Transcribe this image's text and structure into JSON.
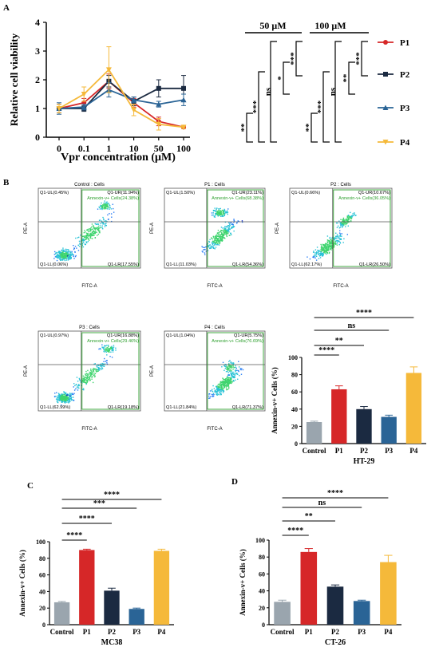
{
  "panel_labels": {
    "a": "A",
    "b": "B",
    "c": "C",
    "d": "D"
  },
  "colors": {
    "P1": "#d62728",
    "P2": "#1b2a41",
    "P3": "#2a6496",
    "P4": "#f5b93a",
    "control": "#9aa5ae",
    "flow_gate": "#2fa02f"
  },
  "chart_data": [
    {
      "type": "line",
      "panel": "A",
      "categories": [
        "0",
        "0.1",
        "1",
        "10",
        "50",
        "100"
      ],
      "xlabel": "Vpr concentration (μM)",
      "ylabel": "Relative cell viability",
      "ylim": [
        0,
        4
      ],
      "yticks": [
        "0",
        "1",
        "2",
        "3",
        "4"
      ],
      "series": [
        {
          "name": "P1",
          "values": [
            1.0,
            1.2,
            1.95,
            1.2,
            0.55,
            0.35
          ],
          "errors": [
            0.15,
            0.15,
            0.25,
            0.15,
            0.15,
            0.05
          ]
        },
        {
          "name": "P2",
          "values": [
            1.0,
            1.0,
            1.95,
            1.25,
            1.7,
            1.7
          ],
          "errors": [
            0.15,
            0.1,
            0.2,
            0.15,
            0.3,
            0.45
          ]
        },
        {
          "name": "P3",
          "values": [
            1.0,
            1.05,
            1.65,
            1.3,
            1.15,
            1.3
          ],
          "errors": [
            0.2,
            0.1,
            0.25,
            0.1,
            0.1,
            0.2
          ]
        },
        {
          "name": "P4",
          "values": [
            1.0,
            1.5,
            2.35,
            0.95,
            0.45,
            0.35
          ],
          "errors": [
            0.15,
            0.25,
            0.8,
            0.2,
            0.2,
            0.05
          ]
        }
      ],
      "significance": {
        "groups": [
          "50 μM",
          "100 μM"
        ],
        "labels_50": [
          "**",
          "***",
          "ns",
          "*",
          "***"
        ],
        "labels_100": [
          "**",
          "***",
          "ns",
          "**",
          "***"
        ]
      },
      "legend": [
        "P1",
        "P2",
        "P3",
        "P4"
      ]
    },
    {
      "type": "scatter",
      "panel": "B-flow",
      "xlabel": "FITC-A",
      "ylabel": "PE-A",
      "plots": [
        {
          "title": "Control : Cells",
          "ul": "Q1-UL(0.45%)",
          "ur": "Q1-UR(11.94%)",
          "annexin": "Annexin-v+ Cells(24.38%)",
          "ll": "Q1-LL(0.06%)",
          "lr": "Q1-LR(17.55%)"
        },
        {
          "title": "P1 : Cells",
          "ul": "Q1-UL(1.50%)",
          "ur": "Q1-UR(23.11%)",
          "annexin": "Annexin-v+ Cells(68.38%)",
          "ll": "Q1-LL(11.03%)",
          "lr": "Q1-LR(54.36%)"
        },
        {
          "title": "P2 : Cells",
          "ul": "Q1-UL(0.66%)",
          "ur": "Q1-UR(10.67%)",
          "annexin": "Annexin-v+ Cells(36.05%)",
          "ll": "Q1-LL(62.17%)",
          "lr": "Q1-LR(26.50%)"
        },
        {
          "title": "P3 : Cells",
          "ul": "Q1-UL(0.97%)",
          "ur": "Q1-UR(16.88%)",
          "annexin": "Annexin-v+ Cells(29.46%)",
          "ll": "Q1-LL(62.99%)",
          "lr": "Q1-LR(19.18%)"
        },
        {
          "title": "P4 : Cells",
          "ul": "Q1-UL(1.04%)",
          "ur": "Q1-UR(5.75%)",
          "annexin": "Annexin-v+ Cells(76.69%)",
          "ll": "Q1-LL(21.84%)",
          "lr": "Q1-LR(71.37%)"
        }
      ]
    },
    {
      "type": "bar",
      "panel": "B",
      "categories": [
        "Control",
        "P1",
        "P2",
        "P3",
        "P4"
      ],
      "values": [
        25,
        63,
        40,
        31,
        82
      ],
      "errors": [
        1,
        4,
        3,
        2,
        7
      ],
      "ylim": [
        0,
        100
      ],
      "yticks": [
        "0",
        "20",
        "40",
        "60",
        "80",
        "100"
      ],
      "ylabel": "Annexin-v+ Cells (%)",
      "xlabel": "HT-29",
      "significance": [
        {
          "to": "P1",
          "label": "****"
        },
        {
          "to": "P2",
          "label": "**"
        },
        {
          "to": "P3",
          "label": "ns"
        },
        {
          "to": "P4",
          "label": "****"
        }
      ]
    },
    {
      "type": "bar",
      "panel": "C",
      "categories": [
        "Control",
        "P1",
        "P2",
        "P3",
        "P4"
      ],
      "values": [
        27,
        90,
        41,
        19,
        89
      ],
      "errors": [
        1,
        1,
        3,
        1,
        2
      ],
      "ylim": [
        0,
        100
      ],
      "yticks": [
        "0",
        "20",
        "40",
        "60",
        "80",
        "100"
      ],
      "ylabel": "Annexin-v+ Cells (%)",
      "xlabel": "MC38",
      "significance": [
        {
          "to": "P1",
          "label": "****"
        },
        {
          "to": "P2",
          "label": "****"
        },
        {
          "to": "P3",
          "label": "***"
        },
        {
          "to": "P4",
          "label": "****"
        }
      ]
    },
    {
      "type": "bar",
      "panel": "D",
      "categories": [
        "Control",
        "P1",
        "P2",
        "P3",
        "P4"
      ],
      "values": [
        27,
        86,
        45,
        28,
        74
      ],
      "errors": [
        2,
        4,
        2,
        1,
        8
      ],
      "ylim": [
        0,
        100
      ],
      "yticks": [
        "0",
        "20",
        "40",
        "60",
        "80",
        "100"
      ],
      "ylabel": "Annexin-v+ Cells (%)",
      "xlabel": "CT-26",
      "significance": [
        {
          "to": "P1",
          "label": "****"
        },
        {
          "to": "P2",
          "label": "**"
        },
        {
          "to": "P3",
          "label": "ns"
        },
        {
          "to": "P4",
          "label": "****"
        }
      ]
    }
  ]
}
